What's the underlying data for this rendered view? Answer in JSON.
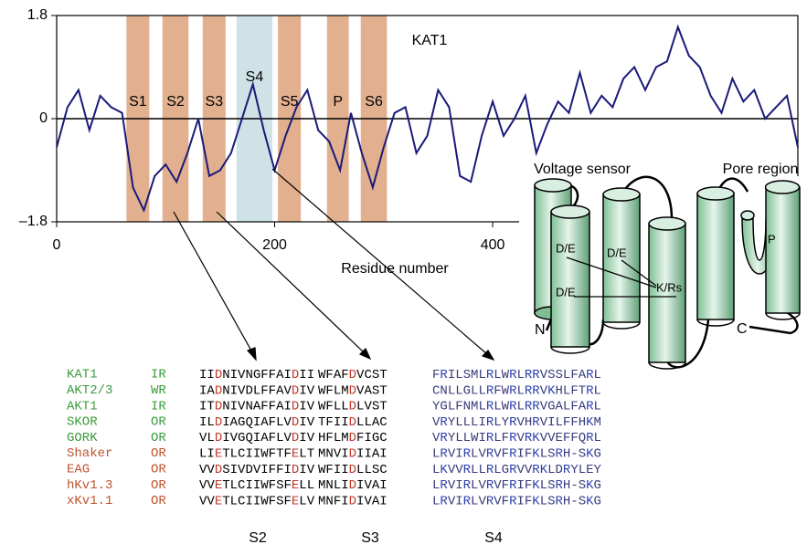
{
  "chart_data": {
    "type": "line",
    "annotation": "KAT1",
    "x_label": "Residue number",
    "color": "#1a1a7a",
    "xlim": [
      0,
      680
    ],
    "ylim": [
      -1.8,
      1.8
    ],
    "xticks": [
      0,
      200,
      400
    ],
    "yticks": [
      {
        "value": -1.8,
        "label": "–1.8"
      },
      0,
      1.8
    ],
    "x": [
      0,
      10,
      20,
      30,
      40,
      50,
      60,
      70,
      80,
      90,
      100,
      110,
      120,
      130,
      140,
      150,
      160,
      170,
      180,
      190,
      200,
      210,
      220,
      230,
      240,
      250,
      260,
      270,
      280,
      290,
      300,
      310,
      320,
      330,
      340,
      350,
      360,
      370,
      380,
      390,
      400,
      410,
      420,
      430,
      440,
      450,
      460,
      470,
      480,
      490,
      500,
      510,
      520,
      530,
      540,
      550,
      560,
      570,
      580,
      590,
      600,
      610,
      620,
      630,
      640,
      650,
      660,
      670,
      680
    ],
    "values": [
      -0.5,
      0.2,
      0.5,
      -0.2,
      0.4,
      0.2,
      0.1,
      -1.2,
      -1.6,
      -1.0,
      -0.8,
      -1.1,
      -0.6,
      0.0,
      -1.0,
      -0.9,
      -0.6,
      0.0,
      0.6,
      -0.2,
      -0.9,
      -0.3,
      0.2,
      0.5,
      -0.2,
      -0.4,
      -0.9,
      0.1,
      -0.6,
      -1.2,
      -0.5,
      0.1,
      0.2,
      -0.6,
      -0.3,
      0.5,
      0.2,
      -1.0,
      -1.1,
      -0.3,
      0.3,
      -0.3,
      0.0,
      0.4,
      -0.6,
      -0.1,
      0.3,
      0.1,
      0.8,
      0.1,
      0.4,
      0.2,
      0.7,
      0.9,
      0.5,
      0.9,
      1.0,
      1.6,
      1.1,
      0.9,
      0.4,
      0.1,
      0.7,
      0.3,
      0.5,
      0.0,
      0.2,
      0.4,
      -0.5
    ],
    "regions": [
      {
        "label": "S1",
        "start": 64,
        "end": 85,
        "color": "#e2b08e"
      },
      {
        "label": "S2",
        "start": 97,
        "end": 121,
        "color": "#e2b08e"
      },
      {
        "label": "S3",
        "start": 134,
        "end": 155,
        "color": "#e2b08e"
      },
      {
        "label": "S4",
        "start": 165,
        "end": 198,
        "color": "#cfe3e6"
      },
      {
        "label": "S5",
        "start": 203,
        "end": 224,
        "color": "#e2b08e"
      },
      {
        "label": "P",
        "start": 248,
        "end": 268,
        "color": "#e2b08e"
      },
      {
        "label": "S6",
        "start": 279,
        "end": 303,
        "color": "#e2b08e"
      }
    ]
  },
  "diagram": {
    "voltage_sensor": "Voltage sensor",
    "pore_region": "Pore region",
    "de1": "D/E",
    "de2": "D/E",
    "de3": "D/E",
    "kr": "K/Rs",
    "n": "N",
    "c": "C",
    "p": "P"
  },
  "alignment": {
    "columns": [
      "S2",
      "S3",
      "S4"
    ],
    "rows": [
      {
        "name": "KAT1",
        "type": "IR",
        "color": "#3a9a3a",
        "s2": "IIDNIVNGFFAIDII",
        "s3": "WFAFDVCST",
        "s4": "FRILSMLRLWRLRRVSSLFARL"
      },
      {
        "name": "AKT2/3",
        "type": "WR",
        "color": "#3a9a3a",
        "s2": "IADNIVDLFFAVDIV",
        "s3": "WFLMDVAST",
        "s4": "CNLLGLLRFWRLRRVKHLFTRL"
      },
      {
        "name": "AKT1",
        "type": "IR",
        "color": "#3a9a3a",
        "s2": "ITDNIVNAFFAIDIV",
        "s3": "WFLLDLVST",
        "s4": "YGLFNMLRLWRLRRVGALFARL"
      },
      {
        "name": "SKOR",
        "type": "OR",
        "color": "#3a9a3a",
        "s2": "ILDIAGQIAFLVDIV",
        "s3": "TFIIDLLAC",
        "s4": "VRYLLLIRLYRVHRVILFFHKM"
      },
      {
        "name": "GORK",
        "type": "OR",
        "color": "#3a9a3a",
        "s2": "VLDIVGQIAFLVDIV",
        "s3": "HFLMDFIGC",
        "s4": "VRYLLWIRLFRVRKVVEFFQRL"
      },
      {
        "name": "Shaker",
        "type": "OR",
        "color": "#c0532e",
        "s2": "LIETLCIIWFTFELT",
        "s3": "MNVIDIIAI",
        "s4": "LRVIRLVRVFRIFKLSRH-SKG"
      },
      {
        "name": "EAG",
        "type": "OR",
        "color": "#c0532e",
        "s2": "VVDSIVDVIFFIDIV",
        "s3": "WFIIDLLSC",
        "s4": "LKVVRLLRLGRVVRKLDRYLEY"
      },
      {
        "name": "hKv1.3",
        "type": "OR",
        "color": "#c0532e",
        "s2": "VVETLCIIWFSFELL",
        "s3": "MNLIDIVAI",
        "s4": "LRVIRLVRVFRIFKLSRH-SKG"
      },
      {
        "name": "xKv1.1",
        "type": "OR",
        "color": "#c0532e",
        "s2": "VVETLCIIWFSFELV",
        "s3": "MNFIDIVAI",
        "s4": "LRVIRLVRVFRIFKLSRH-SKG"
      }
    ]
  }
}
